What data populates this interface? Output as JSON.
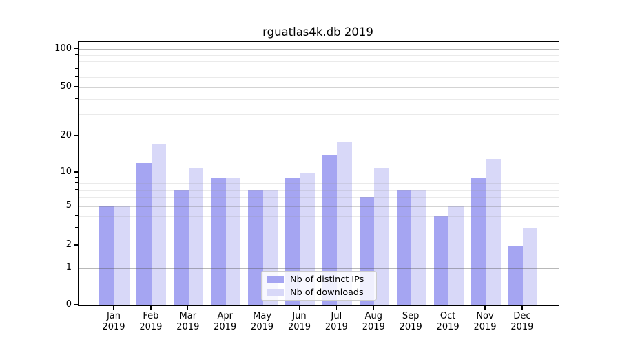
{
  "title": "rguatlas4k.db 2019",
  "chart_data": {
    "type": "bar",
    "title": "rguatlas4k.db 2019",
    "categories": [
      "Jan 2019",
      "Feb 2019",
      "Mar 2019",
      "Apr 2019",
      "May 2019",
      "Jun 2019",
      "Jul 2019",
      "Aug 2019",
      "Sep 2019",
      "Oct 2019",
      "Nov 2019",
      "Dec 2019"
    ],
    "series": [
      {
        "name": "Nb of distinct IPs",
        "color": "#a5a5f2",
        "values": [
          5,
          12,
          7,
          9,
          7,
          9,
          14,
          6,
          7,
          4,
          9,
          2
        ]
      },
      {
        "name": "Nb of downloads",
        "color": "#d8d8f8",
        "values": [
          5,
          17,
          11,
          9,
          7,
          10,
          18,
          11,
          7,
          5,
          13,
          3
        ]
      }
    ],
    "xlabel": "",
    "ylabel": "",
    "yscale": "symlog",
    "y_ticks": [
      0,
      1,
      2,
      5,
      10,
      20,
      50,
      100
    ],
    "y_minor_ticks": [
      3,
      4,
      6,
      7,
      8,
      9,
      30,
      40,
      60,
      70,
      80,
      90
    ],
    "ylim": [
      0,
      115
    ],
    "grid": true,
    "legend_position": "lower center",
    "colors": {
      "major_grid": "#b3b3b3",
      "mid_grid": "#cfcfcf",
      "minor_grid": "#e8e8e8",
      "spine": "#000000"
    }
  }
}
